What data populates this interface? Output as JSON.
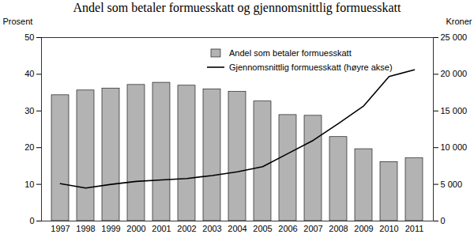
{
  "chart_data": {
    "type": "bar",
    "title": "Andel som betaler formuesskatt og gjennomsnittlig formuesskatt",
    "categories": [
      "1997",
      "1998",
      "1999",
      "2000",
      "2001",
      "2002",
      "2003",
      "2004",
      "2005",
      "2006",
      "2007",
      "2008",
      "2009",
      "2010",
      "2011"
    ],
    "series": [
      {
        "name": "Andel som betaler formuesskatt",
        "type": "bar",
        "color": "#b3b3b3",
        "values": [
          34.3,
          35.6,
          36.1,
          37.1,
          37.7,
          36.9,
          35.9,
          35.2,
          32.6,
          28.9,
          28.7,
          22.9,
          19.6,
          16.1,
          17.1
        ]
      },
      {
        "name": "Gjennomsnittlig formuesskatt (høyre akse)",
        "type": "line",
        "color": "#000000",
        "axis": "y2",
        "values": [
          5100,
          4500,
          5000,
          5400,
          5600,
          5800,
          6200,
          6700,
          7400,
          9200,
          11000,
          13300,
          15700,
          19700,
          20600
        ]
      }
    ],
    "ylabel": "Prosent",
    "y2label": "Kroner",
    "ylim": [
      0,
      50
    ],
    "yticks": [
      0,
      10,
      20,
      30,
      40,
      50
    ],
    "y2lim": [
      0,
      25000
    ],
    "y2ticks": [
      0,
      {
        "value": 5000,
        "label": "5 000"
      },
      {
        "value": 10000,
        "label": "10 000"
      },
      {
        "value": 15000,
        "label": "15 000"
      },
      {
        "value": 20000,
        "label": "20 000"
      },
      {
        "value": 25000,
        "label": "25 000"
      }
    ],
    "legend": "top-right"
  }
}
